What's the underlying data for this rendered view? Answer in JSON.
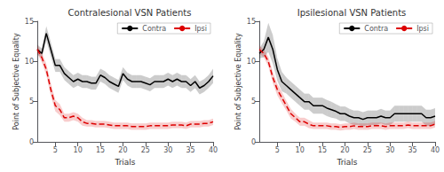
{
  "chart_data": [
    {
      "type": "line",
      "title": "Contralesional VSN Patients",
      "xlabel": "Trials",
      "ylabel": "Point of Subjective Equality",
      "x": [
        1,
        2,
        3,
        4,
        5,
        6,
        7,
        8,
        9,
        10,
        11,
        12,
        13,
        14,
        15,
        16,
        17,
        18,
        19,
        20,
        21,
        22,
        23,
        24,
        25,
        26,
        27,
        28,
        29,
        30,
        31,
        32,
        33,
        34,
        35,
        36,
        37,
        38,
        39,
        40
      ],
      "xlim": [
        1,
        40
      ],
      "xticks": [
        5,
        10,
        15,
        20,
        25,
        30,
        35,
        40
      ],
      "ylim": [
        0,
        15
      ],
      "yticks": [
        0,
        5,
        10,
        15
      ],
      "grid": false,
      "legend": "upper right",
      "marker": "none",
      "series": [
        {
          "name": "Contra",
          "color": "#000000",
          "line_style": "solid",
          "values": [
            11.5,
            11.0,
            13.5,
            11.5,
            9.5,
            9.5,
            8.5,
            8.0,
            7.5,
            7.8,
            7.5,
            7.5,
            7.3,
            7.3,
            8.3,
            8.0,
            7.5,
            7.2,
            6.9,
            8.5,
            7.8,
            7.5,
            7.5,
            7.5,
            7.3,
            7.1,
            7.5,
            7.5,
            7.5,
            7.8,
            7.5,
            7.8,
            7.5,
            7.5,
            7.0,
            7.5,
            6.7,
            7.0,
            7.5,
            8.2
          ],
          "se": [
            0.6,
            0.6,
            0.9,
            0.9,
            0.8,
            0.8,
            0.8,
            0.8,
            0.8,
            0.8,
            0.8,
            0.8,
            0.8,
            0.8,
            0.8,
            0.8,
            0.8,
            0.8,
            0.8,
            0.8,
            0.8,
            0.8,
            0.8,
            0.8,
            0.8,
            0.8,
            0.8,
            0.8,
            0.8,
            0.8,
            0.8,
            0.8,
            0.8,
            0.8,
            0.8,
            0.8,
            0.8,
            0.8,
            0.8,
            0.9
          ]
        },
        {
          "name": "Ipsi",
          "color": "#dd0000",
          "line_style": "dashed",
          "values": [
            11.5,
            10.5,
            9.0,
            6.5,
            4.5,
            4.0,
            3.0,
            3.0,
            3.2,
            3.0,
            2.5,
            2.3,
            2.3,
            2.2,
            2.2,
            2.2,
            2.1,
            2.0,
            2.0,
            2.0,
            2.0,
            1.9,
            1.9,
            1.9,
            1.9,
            2.0,
            2.0,
            2.0,
            2.0,
            2.0,
            2.1,
            2.1,
            2.1,
            2.0,
            2.2,
            2.2,
            2.2,
            2.3,
            2.3,
            2.5
          ],
          "se": [
            0.5,
            0.6,
            0.7,
            0.8,
            0.7,
            0.7,
            0.5,
            0.5,
            0.5,
            0.5,
            0.5,
            0.4,
            0.4,
            0.4,
            0.4,
            0.4,
            0.4,
            0.4,
            0.4,
            0.4,
            0.4,
            0.4,
            0.4,
            0.4,
            0.4,
            0.4,
            0.4,
            0.4,
            0.4,
            0.4,
            0.4,
            0.4,
            0.4,
            0.4,
            0.4,
            0.4,
            0.4,
            0.4,
            0.4,
            0.4
          ]
        }
      ]
    },
    {
      "type": "line",
      "title": "Ipsilesional VSN Patients",
      "xlabel": "Trials",
      "ylabel": "Point of Subjective Equality",
      "x": [
        1,
        2,
        3,
        4,
        5,
        6,
        7,
        8,
        9,
        10,
        11,
        12,
        13,
        14,
        15,
        16,
        17,
        18,
        19,
        20,
        21,
        22,
        23,
        24,
        25,
        26,
        27,
        28,
        29,
        30,
        31,
        32,
        33,
        34,
        35,
        36,
        37,
        38,
        39,
        40
      ],
      "xlim": [
        1,
        40
      ],
      "xticks": [
        5,
        10,
        15,
        20,
        25,
        30,
        35,
        40
      ],
      "ylim": [
        0,
        15
      ],
      "yticks": [
        0,
        5,
        10,
        15
      ],
      "grid": false,
      "legend": "upper right",
      "marker": "none",
      "series": [
        {
          "name": "Contra",
          "color": "#000000",
          "line_style": "solid",
          "values": [
            11.0,
            11.5,
            13.0,
            11.5,
            9.0,
            7.5,
            7.0,
            6.5,
            6.0,
            5.5,
            5.0,
            5.0,
            4.5,
            4.5,
            4.5,
            4.2,
            4.0,
            3.8,
            3.5,
            3.5,
            3.2,
            3.0,
            3.0,
            2.8,
            3.0,
            3.0,
            3.0,
            3.2,
            3.0,
            3.0,
            3.5,
            3.5,
            3.5,
            3.5,
            3.5,
            3.5,
            3.5,
            3.0,
            3.0,
            3.2
          ],
          "se": [
            0.6,
            1.0,
            1.8,
            1.8,
            1.4,
            1.2,
            1.0,
            1.0,
            1.0,
            1.0,
            1.0,
            1.0,
            1.0,
            1.0,
            1.0,
            1.0,
            1.0,
            0.9,
            0.9,
            0.9,
            0.9,
            0.9,
            0.9,
            0.9,
            0.9,
            0.9,
            0.9,
            0.9,
            0.9,
            0.9,
            1.0,
            1.0,
            1.0,
            1.0,
            1.0,
            1.0,
            1.0,
            1.0,
            1.0,
            1.0
          ]
        },
        {
          "name": "Ipsi",
          "color": "#dd0000",
          "line_style": "dashed",
          "values": [
            11.5,
            11.0,
            10.0,
            8.0,
            6.5,
            5.5,
            4.5,
            3.5,
            3.0,
            2.5,
            2.5,
            2.2,
            2.0,
            2.0,
            2.0,
            2.0,
            1.9,
            1.9,
            1.8,
            1.9,
            1.9,
            2.0,
            1.9,
            1.9,
            1.9,
            2.0,
            2.0,
            2.0,
            1.9,
            2.0,
            2.0,
            2.0,
            2.0,
            2.1,
            2.0,
            2.0,
            2.0,
            2.0,
            2.0,
            2.2
          ],
          "se": [
            0.5,
            0.5,
            0.6,
            0.7,
            0.7,
            0.7,
            0.6,
            0.6,
            0.5,
            0.5,
            0.5,
            0.5,
            0.4,
            0.4,
            0.4,
            0.4,
            0.4,
            0.4,
            0.4,
            0.4,
            0.4,
            0.4,
            0.4,
            0.4,
            0.4,
            0.4,
            0.4,
            0.4,
            0.4,
            0.4,
            0.4,
            0.4,
            0.4,
            0.4,
            0.4,
            0.4,
            0.4,
            0.4,
            0.4,
            0.4
          ]
        }
      ]
    }
  ]
}
